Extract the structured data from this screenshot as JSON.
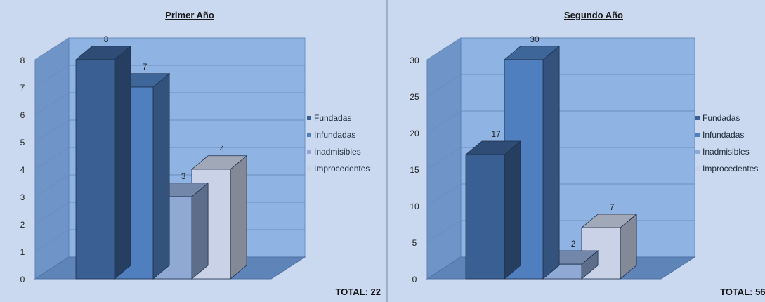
{
  "colors": {
    "Fundadas": "#3a5f93",
    "Infundadas": "#4f7fbf",
    "Inadmisibles": "#8fa9d4",
    "Improcedentes": "#c9d2e6",
    "wall": "#8fb3e3",
    "floor": "#5f84b8"
  },
  "chart_data": [
    {
      "type": "bar",
      "title": "Primer Año",
      "categories": [
        "Fundadas",
        "Infundadas",
        "Inadmisibles",
        "Improcedentes"
      ],
      "values": [
        8,
        7,
        3,
        4
      ],
      "data_labels": [
        "8",
        "7",
        "3",
        "4"
      ],
      "ylim": [
        0,
        8
      ],
      "yticks": [
        "0",
        "1",
        "2",
        "3",
        "4",
        "5",
        "6",
        "7",
        "8"
      ],
      "ytick_values": [
        0,
        1,
        2,
        3,
        4,
        5,
        6,
        7,
        8
      ],
      "grid": true,
      "legend": [
        "Fundadas",
        "Infundadas",
        "Inadmisibles",
        "Improcedentes"
      ],
      "legend_position": "right",
      "total_label": "TOTAL: 22"
    },
    {
      "type": "bar",
      "title": "Segundo Año",
      "categories": [
        "Fundadas",
        "Infundadas",
        "Inadmisibles",
        "Improcedentes"
      ],
      "values": [
        17,
        30,
        2,
        7
      ],
      "data_labels": [
        "17",
        "30",
        "2",
        "7"
      ],
      "ylim": [
        0,
        30
      ],
      "yticks": [
        "0",
        "5",
        "10",
        "15",
        "20",
        "25",
        "30"
      ],
      "ytick_values": [
        0,
        5,
        10,
        15,
        20,
        25,
        30
      ],
      "grid": true,
      "legend": [
        "Fundadas",
        "Infundadas",
        "Inadmisibles",
        "Improcedentes"
      ],
      "legend_position": "right",
      "total_label": "TOTAL: 56"
    }
  ]
}
